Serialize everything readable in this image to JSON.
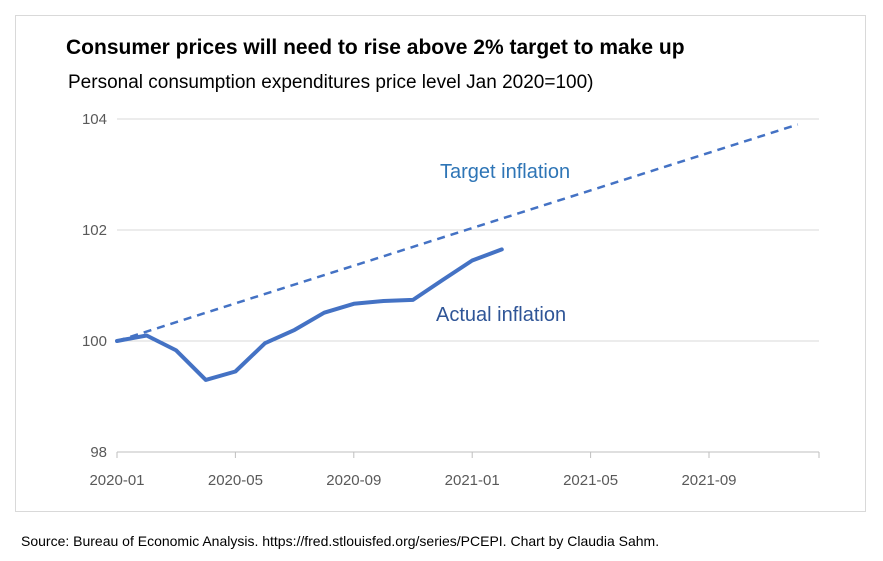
{
  "chart_data": {
    "type": "line",
    "title": "Consumer prices will need to rise above 2% target to make up",
    "subtitle": "Personal consumption expenditures price level Jan 2020=100)",
    "xlabel": "",
    "ylabel": "",
    "x_ticks": [
      "2020-01",
      "2020-05",
      "2020-09",
      "2021-01",
      "2021-05",
      "2021-09"
    ],
    "y_ticks": [
      "98",
      "100",
      "102",
      "104"
    ],
    "ylim": [
      98,
      104
    ],
    "xlim": [
      "2020-01",
      "2021-12"
    ],
    "grid": true,
    "legend": "none",
    "annotations": [
      {
        "text": "Target inflation",
        "color": "#2e75b6"
      },
      {
        "text": "Actual inflation",
        "color": "#2f5597"
      }
    ],
    "series": [
      {
        "style": "solid",
        "color": "#4472c4",
        "x": [
          "2020-01",
          "2020-02",
          "2020-03",
          "2020-04",
          "2020-05",
          "2020-06",
          "2020-07",
          "2020-08",
          "2020-09",
          "2020-10",
          "2020-11",
          "2020-12",
          "2021-01",
          "2021-02"
        ],
        "values": [
          100.0,
          100.1,
          99.83,
          99.3,
          99.45,
          99.96,
          100.2,
          100.51,
          100.67,
          100.72,
          100.74,
          101.1,
          101.45,
          101.65
        ]
      },
      {
        "style": "dashed",
        "color": "#4472c4",
        "x": [
          "2020-01",
          "2021-12"
        ],
        "values": [
          100.0,
          103.9
        ]
      }
    ]
  },
  "source": "Source: Bureau of Economic Analysis. https://fred.stlouisfed.org/series/PCEPI. Chart by Claudia Sahm."
}
